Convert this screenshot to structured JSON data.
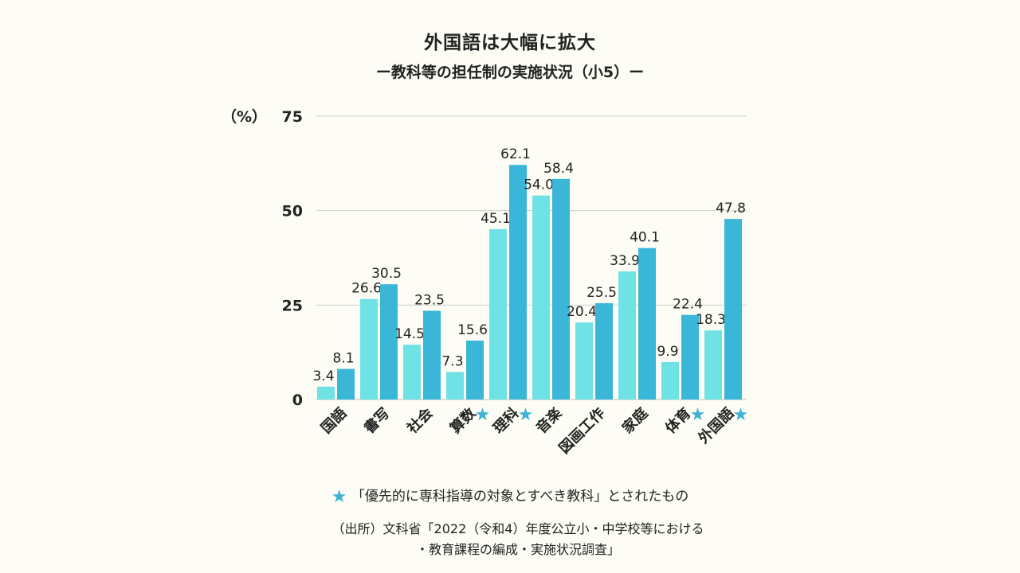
{
  "title": "外国語は大幅に拡大",
  "subtitle": "ー教科等の担任制の実施状況（小5）ー",
  "legend_note": "「優先的に専科指導の対象とすべき教科」とされたもの",
  "source_line1": "（出所）文科省「2022（令和4）年度公立小・中学校等における",
  "source_line2": "・教育課程の編成・実施状況調査」",
  "colors": {
    "light": "#6fe2e6",
    "dark": "#3ab6d9",
    "star": "#3fb2d6",
    "grid": "#cfcfcf"
  },
  "chart_data": {
    "type": "bar",
    "ylabel": "（%）",
    "ylim": [
      0,
      75
    ],
    "yticks": [
      0,
      25,
      50,
      75
    ],
    "categories": [
      "国語",
      "書写",
      "社会",
      "算数",
      "理科",
      "音楽",
      "図画工作",
      "家庭",
      "体育",
      "外国語"
    ],
    "starred": [
      false,
      false,
      false,
      true,
      true,
      false,
      false,
      false,
      true,
      true
    ],
    "series": [
      {
        "values": [
          3.4,
          26.6,
          14.5,
          7.3,
          45.1,
          54.0,
          20.4,
          33.9,
          9.9,
          18.3
        ]
      },
      {
        "values": [
          8.1,
          30.5,
          23.5,
          15.6,
          62.1,
          58.4,
          25.5,
          40.1,
          22.4,
          47.8
        ]
      }
    ],
    "value_labels": [
      [
        "3.4",
        "26.6",
        "14.5",
        "7.3",
        "45.1",
        "54.0",
        "20.4",
        "33.9",
        "9.9",
        "18.3"
      ],
      [
        "8.1",
        "30.5",
        "23.5",
        "15.6",
        "62.1",
        "58.4",
        "25.5",
        "40.1",
        "22.4",
        "47.8"
      ]
    ],
    "grid": true
  }
}
